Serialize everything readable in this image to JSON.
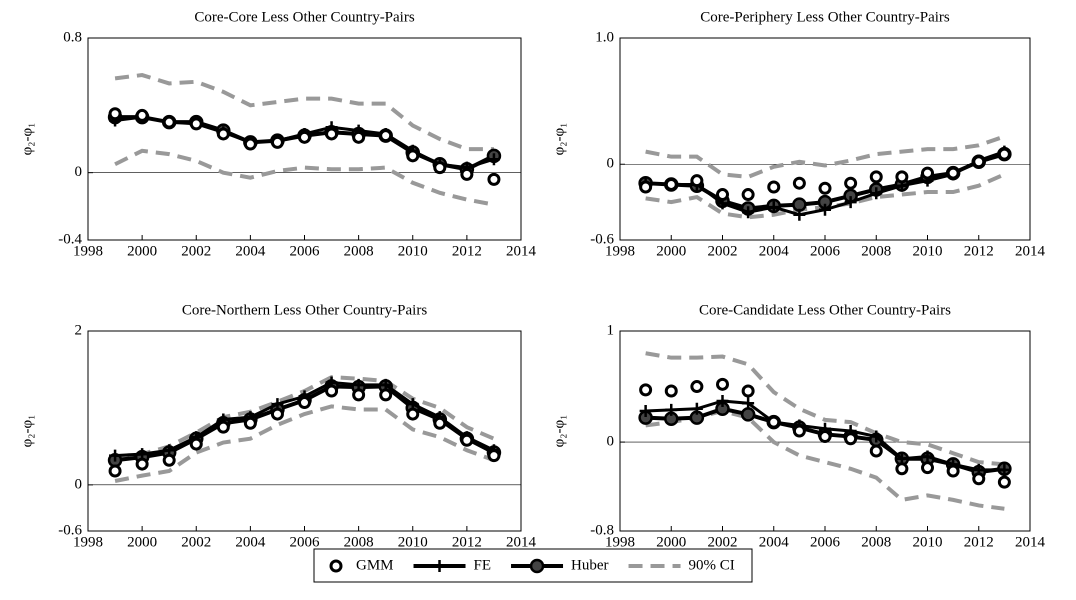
{
  "chart_data": [
    {
      "type": "line",
      "title": "Core-Core Less Other Country-Pairs",
      "ylabel": "φ₂-φ₁",
      "x": [
        1999,
        2000,
        2001,
        2002,
        2003,
        2004,
        2005,
        2006,
        2007,
        2008,
        2009,
        2010,
        2011,
        2012,
        2013
      ],
      "xlim": [
        1998,
        2014
      ],
      "xticks": [
        1998,
        2000,
        2002,
        2004,
        2006,
        2008,
        2010,
        2012,
        2014
      ],
      "ylim": [
        -0.4,
        0.8
      ],
      "yticks": [
        -0.4,
        0,
        0.8
      ],
      "series": [
        {
          "name": "GMM",
          "color": "#000000",
          "marker": "ring",
          "linestyle": "none",
          "values": [
            0.35,
            0.34,
            0.3,
            0.29,
            0.23,
            0.17,
            0.18,
            0.21,
            0.23,
            0.21,
            0.22,
            0.1,
            0.03,
            -0.01,
            -0.04
          ]
        },
        {
          "name": "FE",
          "color": "#000000",
          "marker": "plus",
          "linestyle": "solid",
          "values": [
            0.31,
            0.33,
            0.3,
            0.29,
            0.24,
            0.18,
            0.19,
            0.23,
            0.27,
            0.25,
            0.23,
            0.13,
            0.05,
            0.03,
            0.08
          ]
        },
        {
          "name": "Huber",
          "color": "#000000",
          "marker": "dot",
          "linestyle": "solid",
          "values": [
            0.33,
            0.33,
            0.3,
            0.3,
            0.25,
            0.18,
            0.19,
            0.22,
            0.24,
            0.23,
            0.22,
            0.12,
            0.05,
            0.02,
            0.1
          ]
        },
        {
          "name": "90% CI",
          "color": "#999999",
          "marker": "none",
          "linestyle": "dashed",
          "upper": [
            0.56,
            0.58,
            0.53,
            0.54,
            0.48,
            0.4,
            0.42,
            0.44,
            0.44,
            0.41,
            0.41,
            0.28,
            0.2,
            0.14,
            0.14
          ],
          "lower": [
            0.05,
            0.13,
            0.11,
            0.07,
            0.0,
            -0.03,
            0.01,
            0.03,
            0.02,
            0.02,
            0.03,
            -0.06,
            -0.12,
            -0.16,
            -0.19
          ]
        }
      ]
    },
    {
      "type": "line",
      "title": "Core-Periphery Less Other Country-Pairs",
      "ylabel": "φ₂-φ₁",
      "x": [
        1999,
        2000,
        2001,
        2002,
        2003,
        2004,
        2005,
        2006,
        2007,
        2008,
        2009,
        2010,
        2011,
        2012,
        2013
      ],
      "xlim": [
        1998,
        2014
      ],
      "xticks": [
        1998,
        2000,
        2002,
        2004,
        2006,
        2008,
        2010,
        2012,
        2014
      ],
      "ylim": [
        -0.6,
        1.0
      ],
      "yticks": [
        -0.6,
        0,
        {
          "value": 1,
          "label": "1.0"
        }
      ],
      "series": [
        {
          "name": "GMM",
          "color": "#000000",
          "marker": "ring",
          "linestyle": "none",
          "values": [
            -0.18,
            -0.16,
            -0.13,
            -0.24,
            -0.24,
            -0.18,
            -0.15,
            -0.19,
            -0.15,
            -0.1,
            -0.1,
            -0.07,
            -0.07,
            0.02,
            0.08
          ]
        },
        {
          "name": "FE",
          "color": "#000000",
          "marker": "plus",
          "linestyle": "solid",
          "values": [
            -0.15,
            -0.16,
            -0.16,
            -0.31,
            -0.38,
            -0.34,
            -0.4,
            -0.36,
            -0.3,
            -0.23,
            -0.17,
            -0.13,
            -0.08,
            0.03,
            0.1
          ]
        },
        {
          "name": "Huber",
          "color": "#000000",
          "marker": "dot",
          "linestyle": "solid",
          "values": [
            -0.15,
            -0.16,
            -0.17,
            -0.29,
            -0.35,
            -0.33,
            -0.32,
            -0.3,
            -0.25,
            -0.2,
            -0.16,
            -0.1,
            -0.07,
            0.02,
            0.08
          ]
        },
        {
          "name": "90% CI",
          "color": "#999999",
          "marker": "none",
          "linestyle": "dashed",
          "upper": [
            0.1,
            0.06,
            0.06,
            -0.08,
            -0.1,
            -0.02,
            0.02,
            -0.01,
            0.03,
            0.08,
            0.1,
            0.12,
            0.12,
            0.15,
            0.22
          ],
          "lower": [
            -0.27,
            -0.3,
            -0.26,
            -0.39,
            -0.42,
            -0.4,
            -0.36,
            -0.34,
            -0.31,
            -0.26,
            -0.24,
            -0.22,
            -0.22,
            -0.17,
            -0.08
          ]
        }
      ]
    },
    {
      "type": "line",
      "title": "Core-Northern Less Other Country-Pairs",
      "ylabel": "φ₂-φ₁",
      "x": [
        1999,
        2000,
        2001,
        2002,
        2003,
        2004,
        2005,
        2006,
        2007,
        2008,
        2009,
        2010,
        2011,
        2012,
        2013
      ],
      "xlim": [
        1998,
        2014
      ],
      "xticks": [
        1998,
        2000,
        2002,
        2004,
        2006,
        2008,
        2010,
        2012,
        2014
      ],
      "ylim": [
        -0.6,
        2
      ],
      "yticks": [
        -0.6,
        0,
        2
      ],
      "series": [
        {
          "name": "GMM",
          "color": "#000000",
          "marker": "ring",
          "linestyle": "none",
          "values": [
            0.18,
            0.27,
            0.32,
            0.53,
            0.75,
            0.8,
            0.92,
            1.07,
            1.22,
            1.17,
            1.17,
            0.92,
            0.8,
            0.58,
            0.38
          ]
        },
        {
          "name": "FE",
          "color": "#000000",
          "marker": "plus",
          "linestyle": "solid",
          "values": [
            0.38,
            0.4,
            0.45,
            0.62,
            0.85,
            0.88,
            1.05,
            1.15,
            1.33,
            1.3,
            1.3,
            1.05,
            0.88,
            0.62,
            0.45
          ]
        },
        {
          "name": "Huber",
          "color": "#000000",
          "marker": "dot",
          "linestyle": "solid",
          "values": [
            0.32,
            0.36,
            0.42,
            0.6,
            0.8,
            0.85,
            0.98,
            1.1,
            1.28,
            1.27,
            1.28,
            1.0,
            0.85,
            0.6,
            0.42
          ]
        },
        {
          "name": "90% CI",
          "color": "#999999",
          "marker": "none",
          "linestyle": "dashed",
          "upper": [
            0.36,
            0.4,
            0.5,
            0.68,
            0.88,
            0.95,
            1.08,
            1.22,
            1.4,
            1.38,
            1.35,
            1.12,
            1.0,
            0.75,
            0.6
          ],
          "lower": [
            0.05,
            0.12,
            0.18,
            0.42,
            0.55,
            0.6,
            0.78,
            0.92,
            1.02,
            0.98,
            0.98,
            0.72,
            0.62,
            0.45,
            0.32
          ]
        }
      ]
    },
    {
      "type": "line",
      "title": "Core-Candidate Less Other Country-Pairs",
      "ylabel": "φ₂-φ₁",
      "x": [
        1999,
        2000,
        2001,
        2002,
        2003,
        2004,
        2005,
        2006,
        2007,
        2008,
        2009,
        2010,
        2011,
        2012,
        2013
      ],
      "xlim": [
        1998,
        2014
      ],
      "xticks": [
        1998,
        2000,
        2002,
        2004,
        2006,
        2008,
        2010,
        2012,
        2014
      ],
      "ylim": [
        -0.8,
        1
      ],
      "yticks": [
        -0.8,
        0,
        1
      ],
      "series": [
        {
          "name": "GMM",
          "color": "#000000",
          "marker": "ring",
          "linestyle": "none",
          "values": [
            0.47,
            0.46,
            0.5,
            0.52,
            0.46,
            0.18,
            0.1,
            0.05,
            0.03,
            -0.08,
            -0.24,
            -0.23,
            -0.26,
            -0.33,
            -0.36
          ]
        },
        {
          "name": "FE",
          "color": "#000000",
          "marker": "plus",
          "linestyle": "solid",
          "values": [
            0.28,
            0.29,
            0.3,
            0.37,
            0.35,
            0.18,
            0.15,
            0.12,
            0.1,
            0.05,
            -0.15,
            -0.13,
            -0.2,
            -0.25,
            -0.25
          ]
        },
        {
          "name": "Huber",
          "color": "#000000",
          "marker": "dot",
          "linestyle": "solid",
          "values": [
            0.22,
            0.21,
            0.22,
            0.3,
            0.25,
            0.18,
            0.13,
            0.07,
            0.05,
            0.02,
            -0.15,
            -0.15,
            -0.2,
            -0.27,
            -0.24
          ]
        },
        {
          "name": "90% CI",
          "color": "#999999",
          "marker": "none",
          "linestyle": "dashed",
          "upper": [
            0.8,
            0.76,
            0.76,
            0.77,
            0.7,
            0.45,
            0.3,
            0.2,
            0.18,
            0.08,
            0.0,
            -0.02,
            -0.1,
            -0.18,
            -0.2
          ],
          "lower": [
            0.15,
            0.18,
            0.22,
            0.28,
            0.22,
            0.0,
            -0.12,
            -0.18,
            -0.24,
            -0.32,
            -0.52,
            -0.48,
            -0.52,
            -0.57,
            -0.6
          ]
        }
      ]
    }
  ]
}
